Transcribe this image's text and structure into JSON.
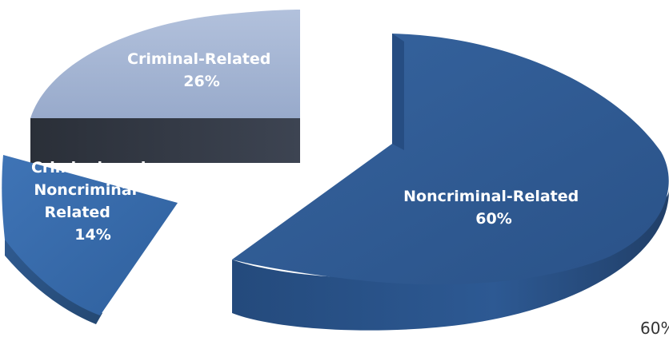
{
  "chart_data": {
    "type": "pie",
    "style": "3d-exploded",
    "slices": [
      {
        "label_lines": [
          "Noncriminal-Related"
        ],
        "percent_text": "60%",
        "value": 60,
        "color": "#2f5a93"
      },
      {
        "label_lines": [
          "Criminal-Related"
        ],
        "percent_text": "26%",
        "value": 26,
        "color": "#9fb1d1"
      },
      {
        "label_lines": [
          "Criminal- and",
          "Noncriminal-",
          "Related"
        ],
        "percent_text": "14%",
        "value": 14,
        "color": "#356aac"
      }
    ],
    "stray_text": "60%"
  }
}
